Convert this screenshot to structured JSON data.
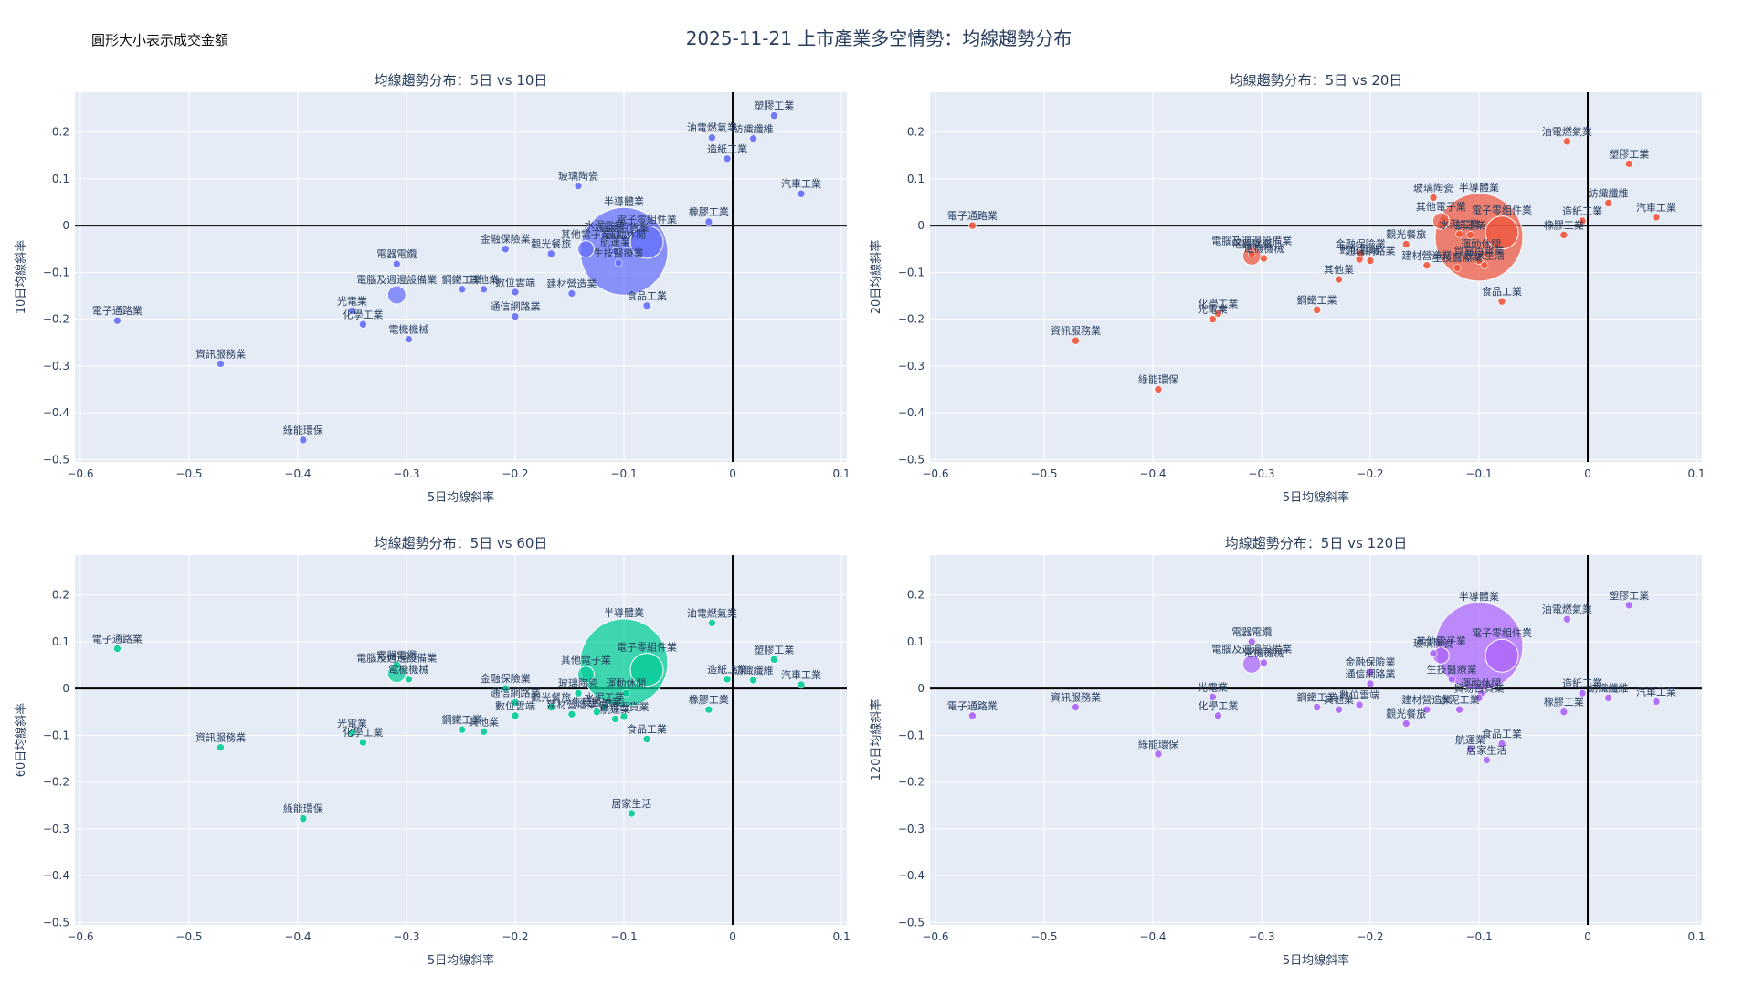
{
  "figure": {
    "title": "2025-11-21 上市產業多空情勢：均線趨勢分布",
    "note": "圓形大小表示成交金額"
  },
  "chart_data": [
    {
      "type": "scatter",
      "title": "均線趨勢分布：5日 vs 10日",
      "xlabel": "5日均線斜率",
      "ylabel": "10日均線斜率",
      "xlim": [
        -0.605,
        0.105
      ],
      "ylim": [
        -0.505,
        0.285
      ],
      "xticks": [
        -0.6,
        -0.5,
        -0.4,
        -0.3,
        -0.2,
        -0.1,
        0,
        0.1
      ],
      "yticks": [
        -0.5,
        -0.4,
        -0.3,
        -0.2,
        -0.1,
        0,
        0.1,
        0.2
      ],
      "color": "#636efa",
      "points": [
        {
          "name": "塑膠工業",
          "x": 0.038,
          "y": 0.235,
          "size": 4
        },
        {
          "name": "油電燃氣業",
          "x": -0.019,
          "y": 0.188,
          "size": 4
        },
        {
          "name": "紡織纖維",
          "x": 0.019,
          "y": 0.186,
          "size": 4
        },
        {
          "name": "造紙工業",
          "x": -0.005,
          "y": 0.143,
          "size": 4
        },
        {
          "name": "汽車工業",
          "x": 0.063,
          "y": 0.068,
          "size": 4
        },
        {
          "name": "玻璃陶瓷",
          "x": -0.142,
          "y": 0.085,
          "size": 4
        },
        {
          "name": "半導體業",
          "x": -0.1,
          "y": -0.055,
          "size": 48
        },
        {
          "name": "電子零組件業",
          "x": -0.079,
          "y": -0.035,
          "size": 18
        },
        {
          "name": "橡膠工業",
          "x": -0.022,
          "y": 0.008,
          "size": 4
        },
        {
          "name": "其他電子業",
          "x": -0.135,
          "y": -0.05,
          "size": 9
        },
        {
          "name": "水泥工業",
          "x": -0.118,
          "y": -0.02,
          "size": 4
        },
        {
          "name": "貿易百貨業",
          "x": -0.1,
          "y": -0.025,
          "size": 4
        },
        {
          "name": "運動休閒",
          "x": -0.098,
          "y": -0.04,
          "size": 4
        },
        {
          "name": "航運業",
          "x": -0.108,
          "y": -0.055,
          "size": 4
        },
        {
          "name": "金融保險業",
          "x": -0.209,
          "y": -0.05,
          "size": 4
        },
        {
          "name": "觀光餐旅",
          "x": -0.167,
          "y": -0.06,
          "size": 4
        },
        {
          "name": "生技醫療業",
          "x": -0.105,
          "y": -0.08,
          "size": 4
        },
        {
          "name": "建材營造業",
          "x": -0.148,
          "y": -0.145,
          "size": 4
        },
        {
          "name": "食品工業",
          "x": -0.079,
          "y": -0.171,
          "size": 4
        },
        {
          "name": "電器電纜",
          "x": -0.309,
          "y": -0.082,
          "size": 4
        },
        {
          "name": "電腦及週邊設備業",
          "x": -0.309,
          "y": -0.148,
          "size": 10
        },
        {
          "name": "鋼鐵工業",
          "x": -0.249,
          "y": -0.136,
          "size": 4
        },
        {
          "name": "其他業",
          "x": -0.229,
          "y": -0.136,
          "size": 4
        },
        {
          "name": "數位雲端",
          "x": -0.2,
          "y": -0.142,
          "size": 4
        },
        {
          "name": "通信網路業",
          "x": -0.2,
          "y": -0.194,
          "size": 4
        },
        {
          "name": "光電業",
          "x": -0.35,
          "y": -0.182,
          "size": 4
        },
        {
          "name": "化學工業",
          "x": -0.34,
          "y": -0.211,
          "size": 4
        },
        {
          "name": "電機機械",
          "x": -0.298,
          "y": -0.243,
          "size": 4
        },
        {
          "name": "電子通路業",
          "x": -0.566,
          "y": -0.203,
          "size": 4
        },
        {
          "name": "資訊服務業",
          "x": -0.471,
          "y": -0.295,
          "size": 4
        },
        {
          "name": "綠能環保",
          "x": -0.395,
          "y": -0.458,
          "size": 4
        }
      ]
    },
    {
      "type": "scatter",
      "title": "均線趨勢分布：5日 vs 20日",
      "xlabel": "5日均線斜率",
      "ylabel": "20日均線斜率",
      "xlim": [
        -0.605,
        0.105
      ],
      "ylim": [
        -0.505,
        0.285
      ],
      "xticks": [
        -0.6,
        -0.5,
        -0.4,
        -0.3,
        -0.2,
        -0.1,
        0,
        0.1
      ],
      "yticks": [
        -0.5,
        -0.4,
        -0.3,
        -0.2,
        -0.1,
        0,
        0.1,
        0.2
      ],
      "color": "#ef553b",
      "points": [
        {
          "name": "油電燃氣業",
          "x": -0.019,
          "y": 0.18,
          "size": 4
        },
        {
          "name": "塑膠工業",
          "x": 0.038,
          "y": 0.132,
          "size": 4
        },
        {
          "name": "紡織纖維",
          "x": 0.019,
          "y": 0.048,
          "size": 4
        },
        {
          "name": "汽車工業",
          "x": 0.063,
          "y": 0.018,
          "size": 4
        },
        {
          "name": "造紙工業",
          "x": -0.005,
          "y": 0.01,
          "size": 4
        },
        {
          "name": "橡膠工業",
          "x": -0.022,
          "y": -0.02,
          "size": 4
        },
        {
          "name": "半導體業",
          "x": -0.1,
          "y": -0.025,
          "size": 48
        },
        {
          "name": "電子零組件業",
          "x": -0.079,
          "y": -0.015,
          "size": 18
        },
        {
          "name": "玻璃陶瓷",
          "x": -0.142,
          "y": 0.06,
          "size": 4
        },
        {
          "name": "其他電子業",
          "x": -0.135,
          "y": 0.01,
          "size": 9
        },
        {
          "name": "水泥工業",
          "x": -0.118,
          "y": -0.018,
          "size": 4
        },
        {
          "name": "航運業",
          "x": -0.108,
          "y": -0.02,
          "size": 4
        },
        {
          "name": "運動休閒",
          "x": -0.098,
          "y": -0.06,
          "size": 4
        },
        {
          "name": "貿易百貨業",
          "x": -0.1,
          "y": -0.075,
          "size": 4
        },
        {
          "name": "居家生活",
          "x": -0.095,
          "y": -0.085,
          "size": 4
        },
        {
          "name": "生技醫療業",
          "x": -0.12,
          "y": -0.09,
          "size": 4
        },
        {
          "name": "觀光餐旅",
          "x": -0.167,
          "y": -0.04,
          "size": 4
        },
        {
          "name": "建材營造業",
          "x": -0.148,
          "y": -0.085,
          "size": 4
        },
        {
          "name": "食品工業",
          "x": -0.079,
          "y": -0.162,
          "size": 4
        },
        {
          "name": "金融保險業",
          "x": -0.209,
          "y": -0.06,
          "size": 4
        },
        {
          "name": "通信網路業",
          "x": -0.2,
          "y": -0.075,
          "size": 4
        },
        {
          "name": "數位雲端",
          "x": -0.21,
          "y": -0.072,
          "size": 4
        },
        {
          "name": "其他業",
          "x": -0.229,
          "y": -0.115,
          "size": 4
        },
        {
          "name": "電器電纜",
          "x": -0.309,
          "y": -0.06,
          "size": 4
        },
        {
          "name": "電腦及週邊設備業",
          "x": -0.309,
          "y": -0.065,
          "size": 10
        },
        {
          "name": "電機機械",
          "x": -0.298,
          "y": -0.07,
          "size": 4
        },
        {
          "name": "鋼鐵工業",
          "x": -0.249,
          "y": -0.18,
          "size": 4
        },
        {
          "name": "化學工業",
          "x": -0.34,
          "y": -0.188,
          "size": 4
        },
        {
          "name": "光電業",
          "x": -0.345,
          "y": -0.2,
          "size": 4
        },
        {
          "name": "電子通路業",
          "x": -0.566,
          "y": 0,
          "size": 4
        },
        {
          "name": "資訊服務業",
          "x": -0.471,
          "y": -0.246,
          "size": 4
        },
        {
          "name": "綠能環保",
          "x": -0.395,
          "y": -0.35,
          "size": 4
        }
      ]
    },
    {
      "type": "scatter",
      "title": "均線趨勢分布：5日 vs 60日",
      "xlabel": "5日均線斜率",
      "ylabel": "60日均線斜率",
      "xlim": [
        -0.605,
        0.105
      ],
      "ylim": [
        -0.505,
        0.285
      ],
      "xticks": [
        -0.6,
        -0.5,
        -0.4,
        -0.3,
        -0.2,
        -0.1,
        0,
        0.1
      ],
      "yticks": [
        -0.5,
        -0.4,
        -0.3,
        -0.2,
        -0.1,
        0,
        0.1,
        0.2
      ],
      "color": "#00cc96",
      "points": [
        {
          "name": "半導體業",
          "x": -0.1,
          "y": 0.055,
          "size": 48
        },
        {
          "name": "油電燃氣業",
          "x": -0.019,
          "y": 0.14,
          "size": 4
        },
        {
          "name": "電子零組件業",
          "x": -0.079,
          "y": 0.04,
          "size": 18
        },
        {
          "name": "塑膠工業",
          "x": 0.038,
          "y": 0.062,
          "size": 4
        },
        {
          "name": "汽車工業",
          "x": 0.063,
          "y": 0.008,
          "size": 4
        },
        {
          "name": "造紙工業",
          "x": -0.005,
          "y": 0.02,
          "size": 4
        },
        {
          "name": "紡織纖維",
          "x": 0.019,
          "y": 0.018,
          "size": 4
        },
        {
          "name": "橡膠工業",
          "x": -0.022,
          "y": -0.045,
          "size": 4
        },
        {
          "name": "其他電子業",
          "x": -0.135,
          "y": 0.03,
          "size": 9
        },
        {
          "name": "玻璃陶瓷",
          "x": -0.142,
          "y": -0.01,
          "size": 4
        },
        {
          "name": "運動休閒",
          "x": -0.098,
          "y": -0.01,
          "size": 4
        },
        {
          "name": "水泥工業",
          "x": -0.118,
          "y": -0.04,
          "size": 4
        },
        {
          "name": "航運業",
          "x": -0.108,
          "y": -0.065,
          "size": 4
        },
        {
          "name": "貿易百貨業",
          "x": -0.1,
          "y": -0.06,
          "size": 4
        },
        {
          "name": "觀光餐旅",
          "x": -0.167,
          "y": -0.04,
          "size": 4
        },
        {
          "name": "建材營造業",
          "x": -0.148,
          "y": -0.055,
          "size": 4
        },
        {
          "name": "生技醫療業",
          "x": -0.125,
          "y": -0.05,
          "size": 4
        },
        {
          "name": "食品工業",
          "x": -0.079,
          "y": -0.108,
          "size": 4
        },
        {
          "name": "金融保險業",
          "x": -0.209,
          "y": 0.0,
          "size": 4
        },
        {
          "name": "通信網路業",
          "x": -0.2,
          "y": -0.03,
          "size": 4
        },
        {
          "name": "數位雲端",
          "x": -0.2,
          "y": -0.058,
          "size": 4
        },
        {
          "name": "電器電纜",
          "x": -0.309,
          "y": 0.05,
          "size": 4
        },
        {
          "name": "電腦及週邊設備業",
          "x": -0.309,
          "y": 0.032,
          "size": 10
        },
        {
          "name": "電機機械",
          "x": -0.298,
          "y": 0.02,
          "size": 4
        },
        {
          "name": "鋼鐵工業",
          "x": -0.249,
          "y": -0.088,
          "size": 4
        },
        {
          "name": "其他業",
          "x": -0.229,
          "y": -0.092,
          "size": 4
        },
        {
          "name": "光電業",
          "x": -0.35,
          "y": -0.095,
          "size": 4
        },
        {
          "name": "化學工業",
          "x": -0.34,
          "y": -0.115,
          "size": 4
        },
        {
          "name": "電子通路業",
          "x": -0.566,
          "y": 0.085,
          "size": 4
        },
        {
          "name": "資訊服務業",
          "x": -0.471,
          "y": -0.126,
          "size": 4
        },
        {
          "name": "居家生活",
          "x": -0.093,
          "y": -0.267,
          "size": 4
        },
        {
          "name": "綠能環保",
          "x": -0.395,
          "y": -0.278,
          "size": 4
        }
      ]
    },
    {
      "type": "scatter",
      "title": "均線趨勢分布：5日 vs 120日",
      "xlabel": "5日均線斜率",
      "ylabel": "120日均線斜率",
      "xlim": [
        -0.605,
        0.105
      ],
      "ylim": [
        -0.505,
        0.285
      ],
      "xticks": [
        -0.6,
        -0.5,
        -0.4,
        -0.3,
        -0.2,
        -0.1,
        0,
        0.1
      ],
      "yticks": [
        -0.5,
        -0.4,
        -0.3,
        -0.2,
        -0.1,
        0,
        0.1,
        0.2
      ],
      "color": "#ab63fa",
      "points": [
        {
          "name": "半導體業",
          "x": -0.1,
          "y": 0.09,
          "size": 48
        },
        {
          "name": "電子零組件業",
          "x": -0.079,
          "y": 0.07,
          "size": 18
        },
        {
          "name": "塑膠工業",
          "x": 0.038,
          "y": 0.178,
          "size": 4
        },
        {
          "name": "油電燃氣業",
          "x": -0.019,
          "y": 0.148,
          "size": 4
        },
        {
          "name": "造紙工業",
          "x": -0.005,
          "y": -0.01,
          "size": 4
        },
        {
          "name": "紡織纖維",
          "x": 0.019,
          "y": -0.02,
          "size": 4
        },
        {
          "name": "汽車工業",
          "x": 0.063,
          "y": -0.028,
          "size": 4
        },
        {
          "name": "橡膠工業",
          "x": -0.022,
          "y": -0.05,
          "size": 4
        },
        {
          "name": "其他電子業",
          "x": -0.135,
          "y": 0.07,
          "size": 9
        },
        {
          "name": "玻璃陶瓷",
          "x": -0.142,
          "y": 0.075,
          "size": 4
        },
        {
          "name": "生技醫療業",
          "x": -0.125,
          "y": 0.02,
          "size": 4
        },
        {
          "name": "運動休閒",
          "x": -0.098,
          "y": -0.01,
          "size": 4
        },
        {
          "name": "貿易百貨業",
          "x": -0.1,
          "y": -0.02,
          "size": 4
        },
        {
          "name": "水泥工業",
          "x": -0.118,
          "y": -0.045,
          "size": 4
        },
        {
          "name": "建材營造業",
          "x": -0.148,
          "y": -0.045,
          "size": 4
        },
        {
          "name": "觀光餐旅",
          "x": -0.167,
          "y": -0.075,
          "size": 4
        },
        {
          "name": "食品工業",
          "x": -0.079,
          "y": -0.118,
          "size": 4
        },
        {
          "name": "航運業",
          "x": -0.108,
          "y": -0.13,
          "size": 4
        },
        {
          "name": "居家生活",
          "x": -0.093,
          "y": -0.153,
          "size": 4
        },
        {
          "name": "金融保險業",
          "x": -0.2,
          "y": 0.035,
          "size": 4
        },
        {
          "name": "通信網路業",
          "x": -0.2,
          "y": 0.01,
          "size": 4
        },
        {
          "name": "數位雲端",
          "x": -0.21,
          "y": -0.035,
          "size": 4
        },
        {
          "name": "鋼鐵工業",
          "x": -0.249,
          "y": -0.04,
          "size": 4
        },
        {
          "name": "其他業",
          "x": -0.229,
          "y": -0.045,
          "size": 4
        },
        {
          "name": "電器電纜",
          "x": -0.309,
          "y": 0.1,
          "size": 4
        },
        {
          "name": "電腦及週邊設備業",
          "x": -0.309,
          "y": 0.052,
          "size": 10
        },
        {
          "name": "電機機械",
          "x": -0.298,
          "y": 0.055,
          "size": 4
        },
        {
          "name": "光電業",
          "x": -0.345,
          "y": -0.018,
          "size": 4
        },
        {
          "name": "化學工業",
          "x": -0.34,
          "y": -0.058,
          "size": 4
        },
        {
          "name": "資訊服務業",
          "x": -0.471,
          "y": -0.04,
          "size": 4
        },
        {
          "name": "電子通路業",
          "x": -0.566,
          "y": -0.058,
          "size": 4
        },
        {
          "name": "綠能環保",
          "x": -0.395,
          "y": -0.14,
          "size": 4
        }
      ]
    }
  ]
}
